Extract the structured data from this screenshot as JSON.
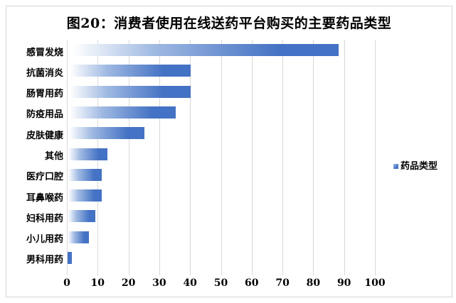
{
  "figure": {
    "title": "图20：消费者使用在线送药平台购买的主要药品类型"
  },
  "legend": {
    "label": "药品类型"
  },
  "colors": {
    "bar_gradient_start": "#ffffff",
    "bar_gradient_mid": "#9fb9e2",
    "bar_fill": "#4472c4",
    "gridline": "#d9d9d9",
    "frame_border": "#d6d6d6",
    "text": "#000000"
  },
  "chart_data": {
    "type": "bar",
    "orientation": "horizontal",
    "title": "图20：消费者使用在线送药平台购买的主要药品类型",
    "series_name": "药品类型",
    "categories": [
      "感冒发烧",
      "抗菌消炎",
      "肠胃用药",
      "防疫用品",
      "皮肤健康",
      "其他",
      "医疗口腔",
      "耳鼻喉药",
      "妇科用药",
      "小儿用药",
      "男科用药"
    ],
    "values": [
      88,
      40,
      40,
      35,
      25,
      13,
      11,
      11,
      9,
      7,
      1.5
    ],
    "xlabel": "",
    "ylabel": "",
    "xlim": [
      0,
      100
    ],
    "x_ticks": [
      0,
      10,
      20,
      30,
      40,
      50,
      60,
      70,
      80,
      90,
      100
    ],
    "grid": true,
    "legend_position": "right"
  }
}
